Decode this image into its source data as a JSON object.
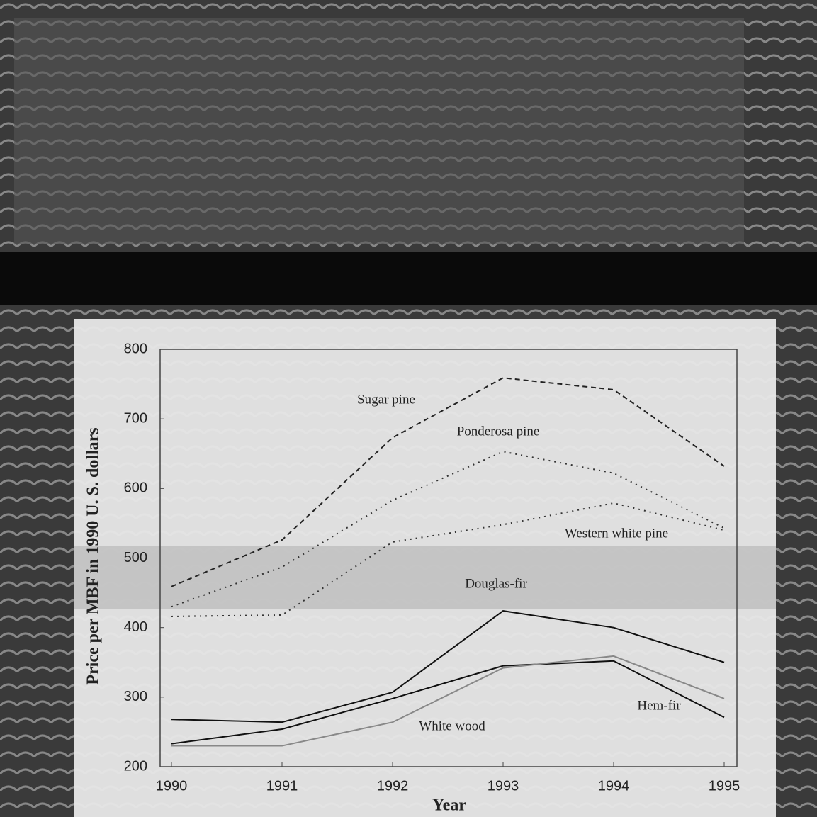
{
  "chart_data": {
    "type": "line",
    "x": [
      1990,
      1991,
      1992,
      1993,
      1994,
      1995
    ],
    "xlim": [
      1990,
      1995
    ],
    "xticks": [
      1990,
      1991,
      1992,
      1993,
      1994,
      1995
    ],
    "ylim": [
      200,
      800
    ],
    "yticks": [
      200,
      300,
      400,
      500,
      600,
      700,
      800
    ],
    "xlabel": "Year",
    "ylabel": "Price per MBF in 1990 U. S. dollars",
    "series": [
      {
        "name": "Sugar pine",
        "color": "#222222",
        "dash": "dashed",
        "values": [
          459,
          526,
          673,
          759,
          742,
          632
        ]
      },
      {
        "name": "Ponderosa pine",
        "color": "#333333",
        "dash": "dotted",
        "values": [
          430,
          487,
          583,
          653,
          622,
          543
        ]
      },
      {
        "name": "Western white pine",
        "color": "#333333",
        "dash": "dotted",
        "values": [
          416,
          418,
          523,
          548,
          579,
          540
        ]
      },
      {
        "name": "Douglas-fir",
        "color": "#111111",
        "dash": "solid",
        "values": [
          268,
          264,
          307,
          424,
          400,
          350
        ]
      },
      {
        "name": "Hem-fir",
        "color": "#111111",
        "dash": "solid",
        "values": [
          233,
          254,
          298,
          345,
          352,
          271
        ]
      },
      {
        "name": "White wood",
        "color": "#888888",
        "dash": "solid",
        "values": [
          230,
          230,
          264,
          342,
          359,
          298
        ]
      }
    ]
  }
}
